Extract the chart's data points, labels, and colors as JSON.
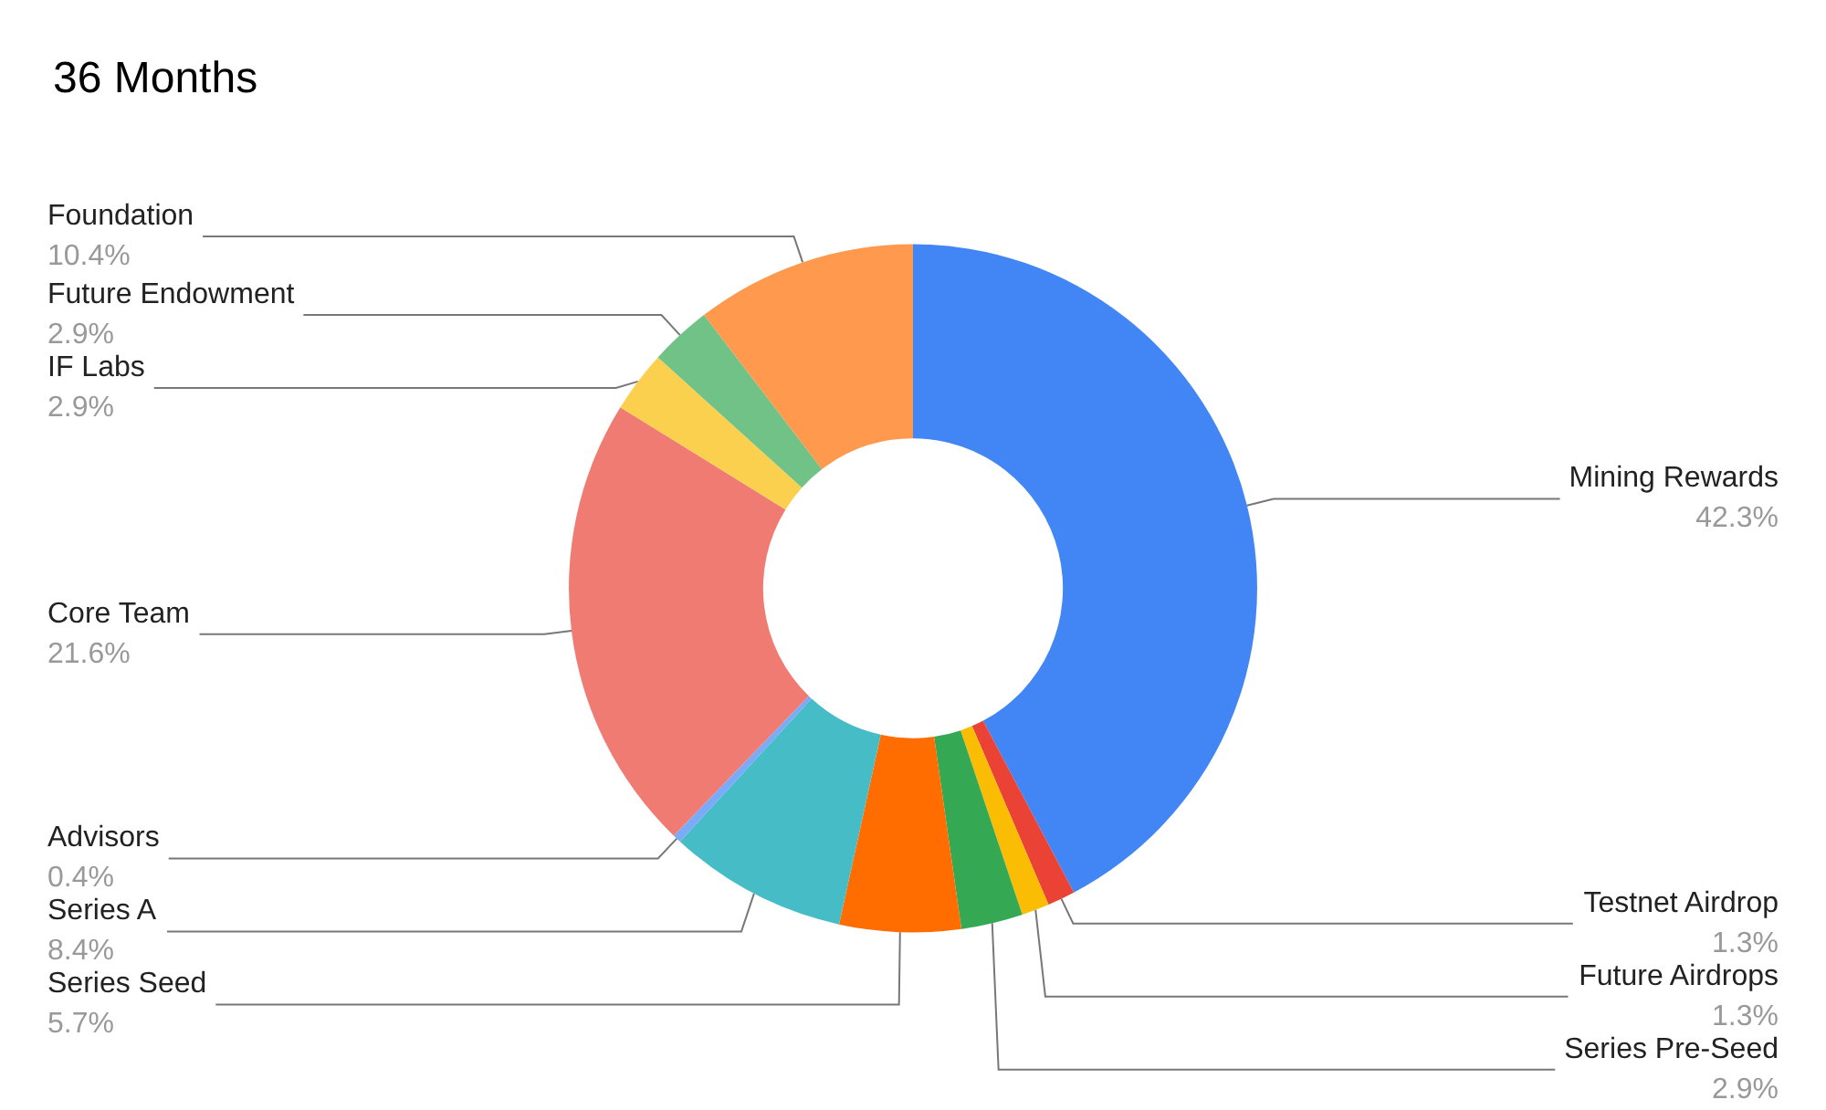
{
  "chart_data": {
    "type": "donut",
    "title": "36 Months",
    "categories": [
      "Mining Rewards",
      "Testnet Airdrop",
      "Future Airdrops",
      "Series Pre-Seed",
      "Series Seed",
      "Series A",
      "Advisors",
      "Core Team",
      "IF Labs",
      "Future Endowment",
      "Foundation"
    ],
    "values": [
      42.3,
      1.3,
      1.3,
      2.9,
      5.7,
      8.4,
      0.4,
      21.6,
      2.9,
      2.9,
      10.4
    ],
    "value_labels": [
      "42.3%",
      "1.3%",
      "1.3%",
      "2.9%",
      "5.7%",
      "8.4%",
      "0.4%",
      "21.6%",
      "2.9%",
      "2.9%",
      "10.4%"
    ],
    "colors": [
      "#4285f4",
      "#ea4335",
      "#fbbc04",
      "#34a853",
      "#ff6d01",
      "#46bdc6",
      "#7baaf7",
      "#f07b72",
      "#fcd04f",
      "#71c287",
      "#ff994d"
    ],
    "legend": false
  }
}
